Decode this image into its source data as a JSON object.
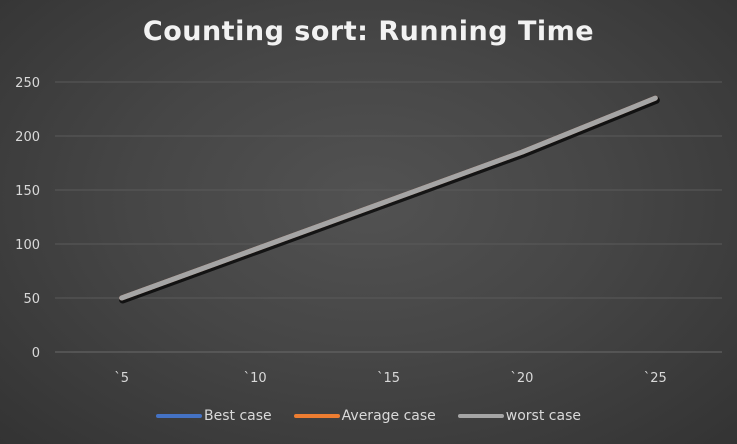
{
  "chart_data": {
    "type": "line",
    "title": "Counting sort: Running Time",
    "categories": [
      "`5",
      "`10",
      "`15",
      "`20",
      "`25"
    ],
    "ylim": [
      0,
      250
    ],
    "yticks": [
      0,
      50,
      100,
      150,
      200,
      250
    ],
    "grid": true,
    "legend_position": "bottom",
    "series": [
      {
        "name": "Best case",
        "color": "#4472c4",
        "values": [
          50,
          95,
          140,
          185,
          235
        ]
      },
      {
        "name": "Average case",
        "color": "#ed7d31",
        "values": [
          50,
          95,
          140,
          185,
          235
        ]
      },
      {
        "name": "worst case",
        "color": "#a5a5a5",
        "values": [
          50,
          95,
          140,
          185,
          235
        ]
      }
    ]
  }
}
